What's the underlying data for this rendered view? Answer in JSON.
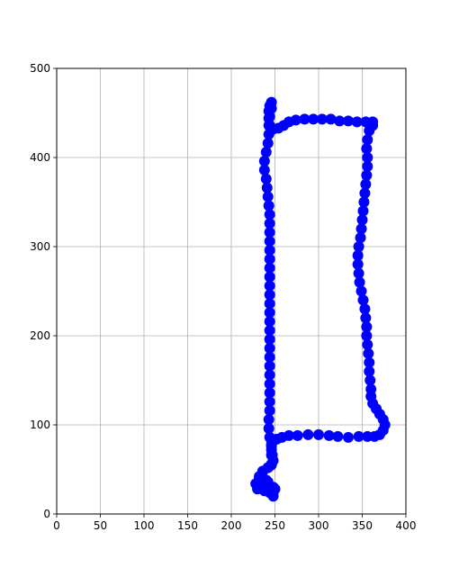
{
  "chart_data": {
    "type": "scatter",
    "title": "",
    "xlabel": "",
    "ylabel": "",
    "xlim": [
      0,
      400
    ],
    "ylim": [
      0,
      500
    ],
    "grid": true,
    "x_ticks": [
      "0",
      "50",
      "100",
      "150",
      "200",
      "250",
      "300",
      "350",
      "400"
    ],
    "y_ticks": [
      "0",
      "100",
      "200",
      "300",
      "400",
      "500"
    ],
    "colors": {
      "marker": "#0000ff",
      "grid": "#b0b0b0",
      "axis": "#000000"
    },
    "series": [
      {
        "points": [
          [
            248,
            20
          ],
          [
            244,
            24
          ],
          [
            238,
            26
          ],
          [
            230,
            28
          ],
          [
            228,
            34
          ],
          [
            232,
            42
          ],
          [
            236,
            48
          ],
          [
            242,
            52
          ],
          [
            246,
            55
          ],
          [
            248,
            60
          ],
          [
            247,
            66
          ],
          [
            246,
            72
          ],
          [
            246,
            78
          ],
          [
            248,
            82
          ],
          [
            252,
            84
          ],
          [
            258,
            86
          ],
          [
            266,
            88
          ],
          [
            276,
            88
          ],
          [
            288,
            89
          ],
          [
            300,
            89
          ],
          [
            312,
            88
          ],
          [
            322,
            87
          ],
          [
            334,
            86
          ],
          [
            346,
            87
          ],
          [
            356,
            87
          ],
          [
            364,
            87
          ],
          [
            370,
            89
          ],
          [
            374,
            94
          ],
          [
            376,
            100
          ],
          [
            374,
            106
          ],
          [
            370,
            112
          ],
          [
            366,
            118
          ],
          [
            362,
            124
          ],
          [
            360,
            132
          ],
          [
            360,
            140
          ],
          [
            359,
            150
          ],
          [
            358,
            160
          ],
          [
            358,
            170
          ],
          [
            357,
            180
          ],
          [
            356,
            190
          ],
          [
            355,
            200
          ],
          [
            355,
            210
          ],
          [
            354,
            220
          ],
          [
            353,
            230
          ],
          [
            351,
            240
          ],
          [
            349,
            250
          ],
          [
            347,
            260
          ],
          [
            346,
            270
          ],
          [
            345,
            280
          ],
          [
            345,
            290
          ],
          [
            346,
            300
          ],
          [
            348,
            310
          ],
          [
            349,
            320
          ],
          [
            350,
            330
          ],
          [
            351,
            340
          ],
          [
            352,
            350
          ],
          [
            353,
            360
          ],
          [
            354,
            370
          ],
          [
            355,
            380
          ],
          [
            356,
            390
          ],
          [
            356,
            400
          ],
          [
            355,
            410
          ],
          [
            356,
            420
          ],
          [
            358,
            430
          ],
          [
            362,
            436
          ],
          [
            362,
            440
          ],
          [
            354,
            440
          ],
          [
            344,
            440
          ],
          [
            334,
            441
          ],
          [
            324,
            441
          ],
          [
            314,
            443
          ],
          [
            304,
            443
          ],
          [
            294,
            443
          ],
          [
            284,
            443
          ],
          [
            274,
            442
          ],
          [
            266,
            440
          ],
          [
            260,
            436
          ],
          [
            254,
            433
          ],
          [
            248,
            432
          ],
          [
            244,
            436
          ],
          [
            243,
            444
          ],
          [
            243,
            452
          ],
          [
            244,
            458
          ],
          [
            246,
            462
          ],
          [
            246,
            455
          ],
          [
            244,
            446
          ],
          [
            243,
            436
          ],
          [
            243,
            426
          ],
          [
            242,
            416
          ],
          [
            240,
            406
          ],
          [
            238,
            396
          ],
          [
            238,
            386
          ],
          [
            240,
            376
          ],
          [
            241,
            366
          ],
          [
            242,
            356
          ],
          [
            243,
            346
          ],
          [
            244,
            336
          ],
          [
            244,
            326
          ],
          [
            244,
            316
          ],
          [
            244,
            306
          ],
          [
            244,
            296
          ],
          [
            244,
            286
          ],
          [
            244,
            276
          ],
          [
            244,
            266
          ],
          [
            244,
            256
          ],
          [
            244,
            246
          ],
          [
            244,
            236
          ],
          [
            244,
            226
          ],
          [
            244,
            216
          ],
          [
            244,
            206
          ],
          [
            244,
            196
          ],
          [
            244,
            186
          ],
          [
            244,
            176
          ],
          [
            244,
            166
          ],
          [
            244,
            156
          ],
          [
            244,
            146
          ],
          [
            244,
            136
          ],
          [
            244,
            126
          ],
          [
            244,
            116
          ],
          [
            243,
            106
          ],
          [
            243,
            96
          ],
          [
            244,
            86
          ],
          [
            246,
            76
          ],
          [
            246,
            66
          ],
          [
            246,
            56
          ],
          [
            242,
            52
          ],
          [
            236,
            48
          ],
          [
            232,
            40
          ],
          [
            234,
            34
          ],
          [
            236,
            30
          ],
          [
            240,
            28
          ],
          [
            244,
            26
          ],
          [
            248,
            24
          ],
          [
            250,
            28
          ],
          [
            248,
            30
          ],
          [
            242,
            36
          ],
          [
            240,
            38
          ]
        ]
      }
    ]
  }
}
